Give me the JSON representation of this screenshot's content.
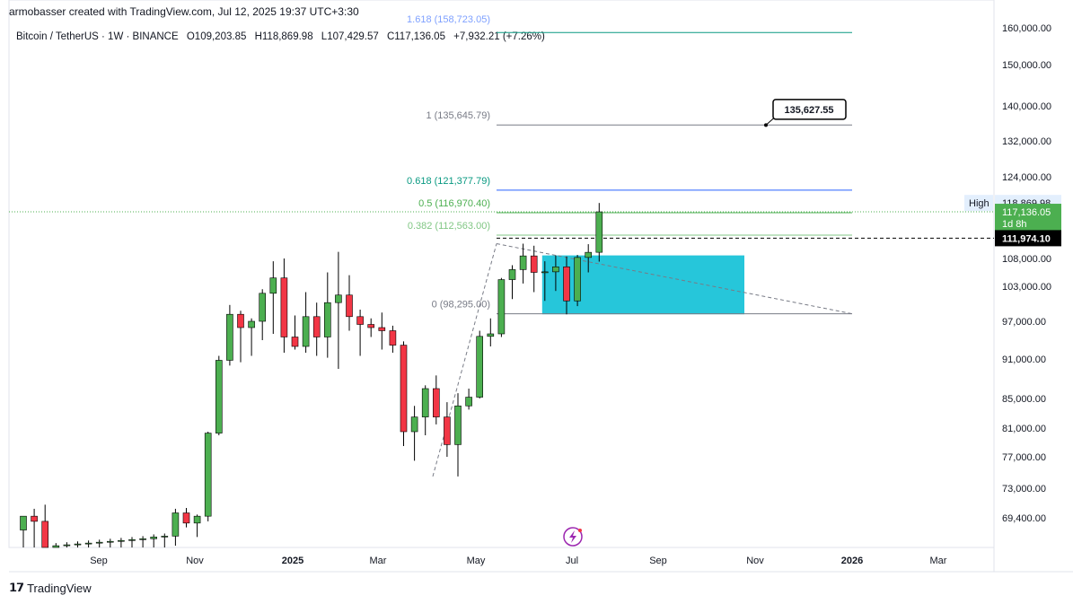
{
  "header": {
    "attribution": "armobasser created with TradingView.com, Jul 12, 2025 19:37 UTC+3:30"
  },
  "symbol": {
    "name": "Bitcoin / TetherUS · 1W · BINANCE",
    "open": "O109,203.85",
    "high": "H118,869.98",
    "low": "L107,429.57",
    "close": "C117,136.05",
    "change": "+7,932.21 (+7.26%)"
  },
  "footer": {
    "brand": "TradingView"
  },
  "colors": {
    "up": "#4caf50",
    "down": "#f23645",
    "grid": "#f0f3fa",
    "fib_teal": "#26c6da",
    "fib_blue": "#2962ff",
    "zone": "#26c6da"
  },
  "icons": {
    "brand_logo": "tradingview-logo-icon",
    "replay": "lightning-icon"
  },
  "chart_data": {
    "type": "candlestick",
    "ylim": [
      66000,
      163000
    ],
    "y_ticks": [
      69400,
      73000,
      77000,
      81000,
      85000,
      91000,
      97000,
      103000,
      108000,
      124000,
      132000,
      140000,
      150000,
      160000
    ],
    "y_tick_labels": [
      "69,400.00",
      "73,000.00",
      "77,000.00",
      "81,000.00",
      "85,000.00",
      "91,000.00",
      "97,000.00",
      "103,000.00",
      "108,000.00",
      "124,000.00",
      "132,000.00",
      "140,000.00",
      "150,000.00",
      "160,000.00"
    ],
    "x_ticks": [
      "Sep",
      "Nov",
      "2025",
      "Mar",
      "May",
      "Jul",
      "Sep",
      "Nov",
      "2026",
      "Mar"
    ],
    "candles": [
      {
        "o": 68000,
        "h": 69600,
        "l": 66000,
        "c": 69600
      },
      {
        "o": 69600,
        "h": 70500,
        "l": 66000,
        "c": 69000
      },
      {
        "o": 69000,
        "h": 71000,
        "l": 66000,
        "c": 66000
      },
      {
        "o": 66000,
        "h": 66500,
        "l": 66000,
        "c": 66200
      },
      {
        "o": 66200,
        "h": 66600,
        "l": 66000,
        "c": 66300
      },
      {
        "o": 66300,
        "h": 66700,
        "l": 66000,
        "c": 66400
      },
      {
        "o": 66400,
        "h": 66800,
        "l": 66000,
        "c": 66500
      },
      {
        "o": 66500,
        "h": 66900,
        "l": 66000,
        "c": 66600
      },
      {
        "o": 66600,
        "h": 67000,
        "l": 66000,
        "c": 66700
      },
      {
        "o": 66700,
        "h": 67100,
        "l": 66000,
        "c": 66800
      },
      {
        "o": 66800,
        "h": 67200,
        "l": 66000,
        "c": 66900
      },
      {
        "o": 66900,
        "h": 67300,
        "l": 66000,
        "c": 67000
      },
      {
        "o": 67000,
        "h": 67500,
        "l": 66000,
        "c": 67200
      },
      {
        "o": 67200,
        "h": 67600,
        "l": 66000,
        "c": 67300
      },
      {
        "o": 67300,
        "h": 70500,
        "l": 66200,
        "c": 70000
      },
      {
        "o": 70000,
        "h": 70600,
        "l": 68300,
        "c": 68800
      },
      {
        "o": 68800,
        "h": 69800,
        "l": 67200,
        "c": 69600
      },
      {
        "o": 69600,
        "h": 80500,
        "l": 69000,
        "c": 80300
      },
      {
        "o": 80300,
        "h": 91500,
        "l": 80000,
        "c": 90800
      },
      {
        "o": 90800,
        "h": 99800,
        "l": 90000,
        "c": 98200
      },
      {
        "o": 98200,
        "h": 98800,
        "l": 90500,
        "c": 96000
      },
      {
        "o": 96000,
        "h": 97500,
        "l": 91500,
        "c": 97000
      },
      {
        "o": 97000,
        "h": 102500,
        "l": 94000,
        "c": 101800
      },
      {
        "o": 101800,
        "h": 107500,
        "l": 95000,
        "c": 104500
      },
      {
        "o": 104500,
        "h": 108000,
        "l": 92000,
        "c": 94500
      },
      {
        "o": 94500,
        "h": 98000,
        "l": 92500,
        "c": 93000
      },
      {
        "o": 93000,
        "h": 102000,
        "l": 92000,
        "c": 97800
      },
      {
        "o": 97800,
        "h": 100200,
        "l": 91500,
        "c": 94500
      },
      {
        "o": 94500,
        "h": 105500,
        "l": 91200,
        "c": 100200
      },
      {
        "o": 100200,
        "h": 109300,
        "l": 89500,
        "c": 101500
      },
      {
        "o": 101500,
        "h": 105000,
        "l": 95500,
        "c": 97800
      },
      {
        "o": 97800,
        "h": 99000,
        "l": 91500,
        "c": 96500
      },
      {
        "o": 96500,
        "h": 97500,
        "l": 94500,
        "c": 96000
      },
      {
        "o": 96000,
        "h": 98500,
        "l": 92500,
        "c": 95500
      },
      {
        "o": 95500,
        "h": 96300,
        "l": 92000,
        "c": 93200
      },
      {
        "o": 93200,
        "h": 93800,
        "l": 78500,
        "c": 80500
      },
      {
        "o": 80500,
        "h": 84000,
        "l": 76500,
        "c": 82500
      },
      {
        "o": 82500,
        "h": 87000,
        "l": 80000,
        "c": 86500
      },
      {
        "o": 86500,
        "h": 88500,
        "l": 81500,
        "c": 82500
      },
      {
        "o": 82500,
        "h": 84500,
        "l": 77000,
        "c": 78700
      },
      {
        "o": 78700,
        "h": 85800,
        "l": 74500,
        "c": 84000
      },
      {
        "o": 84000,
        "h": 86500,
        "l": 83500,
        "c": 85200
      },
      {
        "o": 85200,
        "h": 95500,
        "l": 85000,
        "c": 94600
      },
      {
        "o": 94600,
        "h": 97500,
        "l": 93000,
        "c": 95000
      },
      {
        "o": 95000,
        "h": 104500,
        "l": 94500,
        "c": 104200
      },
      {
        "o": 104200,
        "h": 106800,
        "l": 100800,
        "c": 106000
      },
      {
        "o": 106000,
        "h": 110900,
        "l": 103500,
        "c": 108500
      },
      {
        "o": 108500,
        "h": 110500,
        "l": 102000,
        "c": 105500
      },
      {
        "o": 105500,
        "h": 107500,
        "l": 100500,
        "c": 105600
      },
      {
        "o": 105600,
        "h": 108600,
        "l": 102200,
        "c": 106500
      },
      {
        "o": 106500,
        "h": 108400,
        "l": 98200,
        "c": 100500
      },
      {
        "o": 100500,
        "h": 108700,
        "l": 99600,
        "c": 108200
      },
      {
        "o": 108200,
        "h": 110800,
        "l": 105500,
        "c": 109203.85
      },
      {
        "o": 109203.85,
        "h": 118869.98,
        "l": 107429.57,
        "c": 117136.05
      }
    ],
    "fib_levels": [
      {
        "label": "0 (98,295.00)",
        "value": 98295,
        "color": "#787b86"
      },
      {
        "label": "0.382 (112,563.00)",
        "value": 112563,
        "color": "#81c784"
      },
      {
        "label": "0.5 (116,970.40)",
        "value": 116970.4,
        "color": "#4caf50"
      },
      {
        "label": "0.618 (121,377.79)",
        "value": 121377.79,
        "color": "#089981"
      },
      {
        "label": "1 (135,645.79)",
        "value": 135645.79,
        "color": "#787b86"
      },
      {
        "label": "1.618 (158,723.05)",
        "value": 158723.05,
        "color": "#2962ff"
      }
    ],
    "callout": {
      "label": "135,627.55",
      "value": 135627.55
    },
    "price_badges": {
      "high_label": "High",
      "high_value": "118,869.98",
      "last_value": "117,136.05",
      "countdown": "1d 8h",
      "line_value": "111,974.10",
      "line_price": 111974.1
    },
    "zone": {
      "top": 108600,
      "bottom": 98200
    }
  }
}
